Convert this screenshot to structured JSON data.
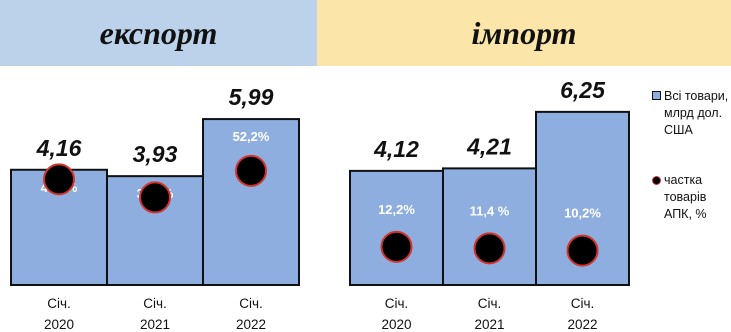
{
  "banners": {
    "export": "експорт",
    "import": "імпорт"
  },
  "legend": {
    "bars": "Всі товари, млрд дол. США",
    "share": "частка товарів АПК, %"
  },
  "colors": {
    "bar": "#8eaee0",
    "bar_border": "#111111",
    "dot": "#000000",
    "dot_border": "#d0342c",
    "share_label": "#ffffff"
  },
  "chart_data": [
    {
      "type": "bar",
      "title": "експорт",
      "categories": [
        "Січ. 2020",
        "Січ. 2021",
        "Січ. 2022"
      ],
      "series": [
        {
          "name": "Всі товари, млрд дол. США",
          "values": [
            4.16,
            3.93,
            5.99
          ],
          "labels": [
            "4,16",
            "3,93",
            "5,99"
          ]
        },
        {
          "name": "частка товарів АПК, %",
          "values": [
            47.7,
            38.2,
            52.2
          ],
          "labels": [
            "47,7%",
            "38,2%",
            "52,2%"
          ]
        }
      ]
    },
    {
      "type": "bar",
      "title": "імпорт",
      "categories": [
        "Січ. 2020",
        "Січ. 2021",
        "Січ. 2022"
      ],
      "series": [
        {
          "name": "Всі товари, млрд дол. США",
          "values": [
            4.12,
            4.21,
            6.25
          ],
          "labels": [
            "4,12",
            "4,21",
            "6,25"
          ]
        },
        {
          "name": "частка товарів АПК, %",
          "values": [
            12.2,
            11.4,
            10.2
          ],
          "labels": [
            "12,2%",
            "11,4 %",
            "10,2%"
          ]
        }
      ]
    }
  ]
}
